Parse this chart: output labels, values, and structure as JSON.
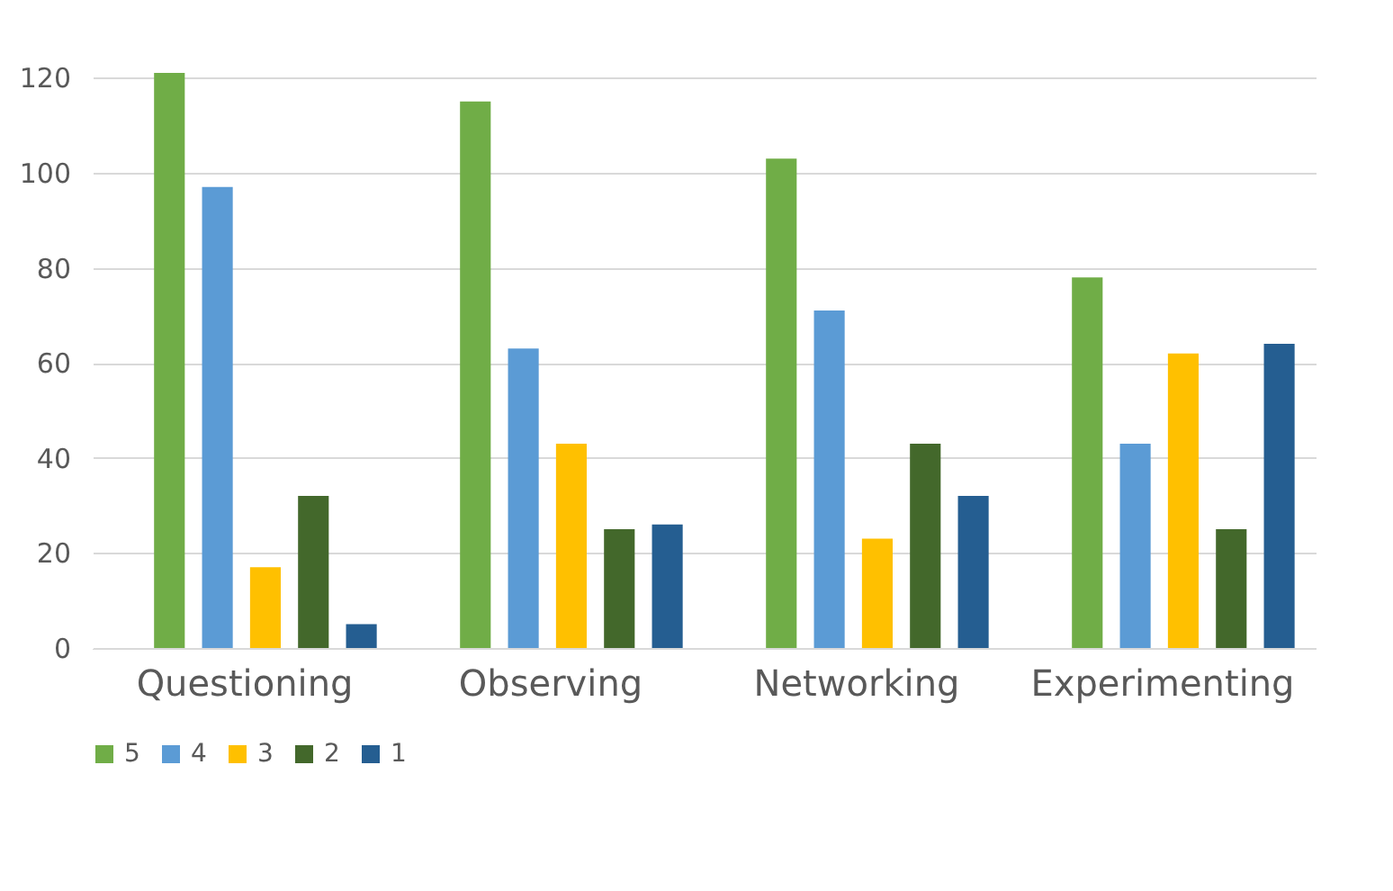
{
  "chart_data": {
    "type": "bar",
    "categories": [
      "Questioning",
      "Observing",
      "Networking",
      "Experimenting"
    ],
    "series": [
      {
        "name": "5",
        "color": "#70ad47",
        "values": [
          121,
          115,
          103,
          78
        ]
      },
      {
        "name": "4",
        "color": "#5b9bd5",
        "values": [
          97,
          63,
          71,
          43
        ]
      },
      {
        "name": "3",
        "color": "#ffc000",
        "values": [
          17,
          43,
          23,
          62
        ]
      },
      {
        "name": "2",
        "color": "#43682b",
        "values": [
          32,
          25,
          43,
          25
        ]
      },
      {
        "name": "1",
        "color": "#255e91",
        "values": [
          5,
          26,
          32,
          64
        ]
      }
    ],
    "ylim": [
      0,
      125
    ],
    "yticks": [
      0,
      20,
      40,
      60,
      80,
      100,
      120
    ],
    "grid": "y",
    "legend": "bottom"
  }
}
